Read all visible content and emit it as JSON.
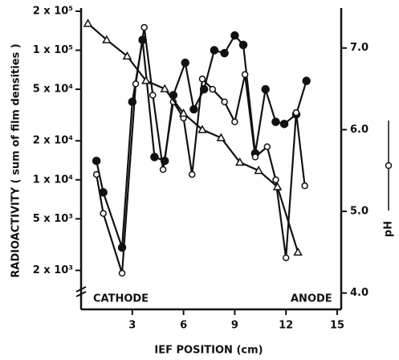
{
  "chart_data": {
    "type": "line",
    "x_label": "IEF POSITION (cm)",
    "y_label": "RADIOACTIVITY ( sum of film densities )",
    "y2_label": "pH",
    "annotations": [
      "CATHODE",
      "ANODE"
    ],
    "xlim": [
      0,
      15
    ],
    "xticks": [
      3,
      6,
      9,
      12,
      15
    ],
    "ylim": [
      1000,
      200000
    ],
    "y_scale": "log",
    "yticks": [
      {
        "value": 200000,
        "label": "2 x 10⁵"
      },
      {
        "value": 100000,
        "label": "1 x 10⁵"
      },
      {
        "value": 50000,
        "label": "5 x 10⁴"
      },
      {
        "value": 20000,
        "label": "2 x 10⁴"
      },
      {
        "value": 10000,
        "label": "1 x 10⁴"
      },
      {
        "value": 5000,
        "label": "5 x 10³"
      },
      {
        "value": 2000,
        "label": "2 x 10³"
      }
    ],
    "y2lim": [
      3.8,
      7.45
    ],
    "y2ticks": [
      {
        "value": 4,
        "label": "4.0"
      },
      {
        "value": 5,
        "label": "5.0"
      },
      {
        "value": 6,
        "label": "6.0"
      },
      {
        "value": 7,
        "label": "7.0"
      }
    ],
    "series": [
      {
        "color": "#111",
        "marker": "filled-circle",
        "x": [
          0.9,
          1.3,
          2.4,
          3.0,
          3.6,
          4.3,
          4.9,
          5.4,
          6.1,
          6.6,
          7.2,
          7.8,
          8.4,
          9.0,
          9.5,
          10.2,
          10.8,
          11.4,
          11.9,
          12.6,
          13.2
        ],
        "values": [
          14000,
          8000,
          3000,
          40000,
          120000,
          15000,
          14000,
          45000,
          80000,
          35000,
          50000,
          100000,
          95000,
          130000,
          110000,
          16000,
          50000,
          28000,
          27000,
          32000,
          58000
        ]
      },
      {
        "color": "#111",
        "marker": "open-circle",
        "x": [
          0.9,
          1.3,
          2.4,
          3.2,
          3.7,
          4.2,
          4.8,
          5.4,
          6.0,
          6.5,
          7.1,
          7.7,
          8.4,
          9.0,
          9.6,
          10.2,
          10.9,
          11.4,
          12.0,
          12.6,
          13.1
        ],
        "values": [
          11000,
          5500,
          1900,
          55000,
          150000,
          45000,
          12000,
          40000,
          30000,
          11000,
          60000,
          50000,
          40000,
          28000,
          65000,
          15000,
          18000,
          10000,
          2500,
          33000,
          9000
        ]
      },
      {
        "color": "#111",
        "marker": "triangle",
        "axis": "y2",
        "x": [
          0.4,
          1.5,
          2.7,
          3.8,
          4.9,
          6.0,
          7.1,
          8.2,
          9.3,
          10.4,
          11.5,
          12.7
        ],
        "values": [
          7.3,
          7.1,
          6.9,
          6.6,
          6.5,
          6.2,
          6.0,
          5.9,
          5.6,
          5.5,
          5.3,
          4.5
        ]
      }
    ]
  }
}
